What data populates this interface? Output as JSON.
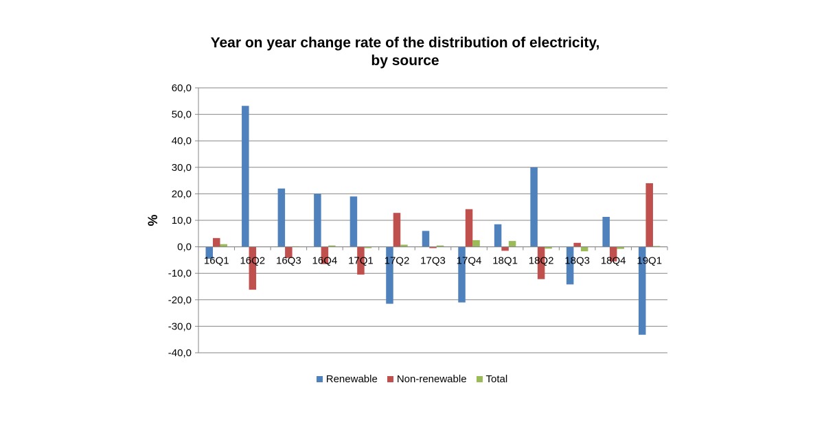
{
  "chart_data": {
    "type": "bar",
    "title": [
      "Year on year change rate of the distribution of electricity,",
      "by source"
    ],
    "ylabel": "%",
    "xlabel": "",
    "ylim": [
      -40,
      60
    ],
    "yticks": [
      "60,0",
      "50,0",
      "40,0",
      "30,0",
      "20,0",
      "10,0",
      "0,0",
      "-10,0",
      "-20,0",
      "-30,0",
      "-40,0"
    ],
    "grid": true,
    "legend_position": "bottom",
    "categories": [
      "16Q1",
      "16Q2",
      "16Q3",
      "16Q4",
      "17Q1",
      "17Q2",
      "17Q3",
      "17Q4",
      "18Q1",
      "18Q2",
      "18Q3",
      "18Q4",
      "19Q1"
    ],
    "series": [
      {
        "name": "Renewable",
        "color": "#4F81BD",
        "values": [
          -4.5,
          53.2,
          22.0,
          20.0,
          19.0,
          -21.5,
          6.0,
          -21.0,
          8.5,
          30.0,
          -14.2,
          11.3,
          -33.2
        ]
      },
      {
        "name": "Non-renewable",
        "color": "#C0504D",
        "values": [
          3.3,
          -16.2,
          -4.2,
          -6.5,
          -10.5,
          12.8,
          -0.5,
          14.2,
          -1.5,
          -12.2,
          1.5,
          -5.5,
          24.0
        ]
      },
      {
        "name": "Total",
        "color": "#9BBB59",
        "values": [
          1.0,
          0.0,
          0.2,
          0.5,
          -0.5,
          0.8,
          0.5,
          2.5,
          2.2,
          -0.7,
          -1.7,
          -0.8,
          0.3
        ]
      }
    ]
  }
}
